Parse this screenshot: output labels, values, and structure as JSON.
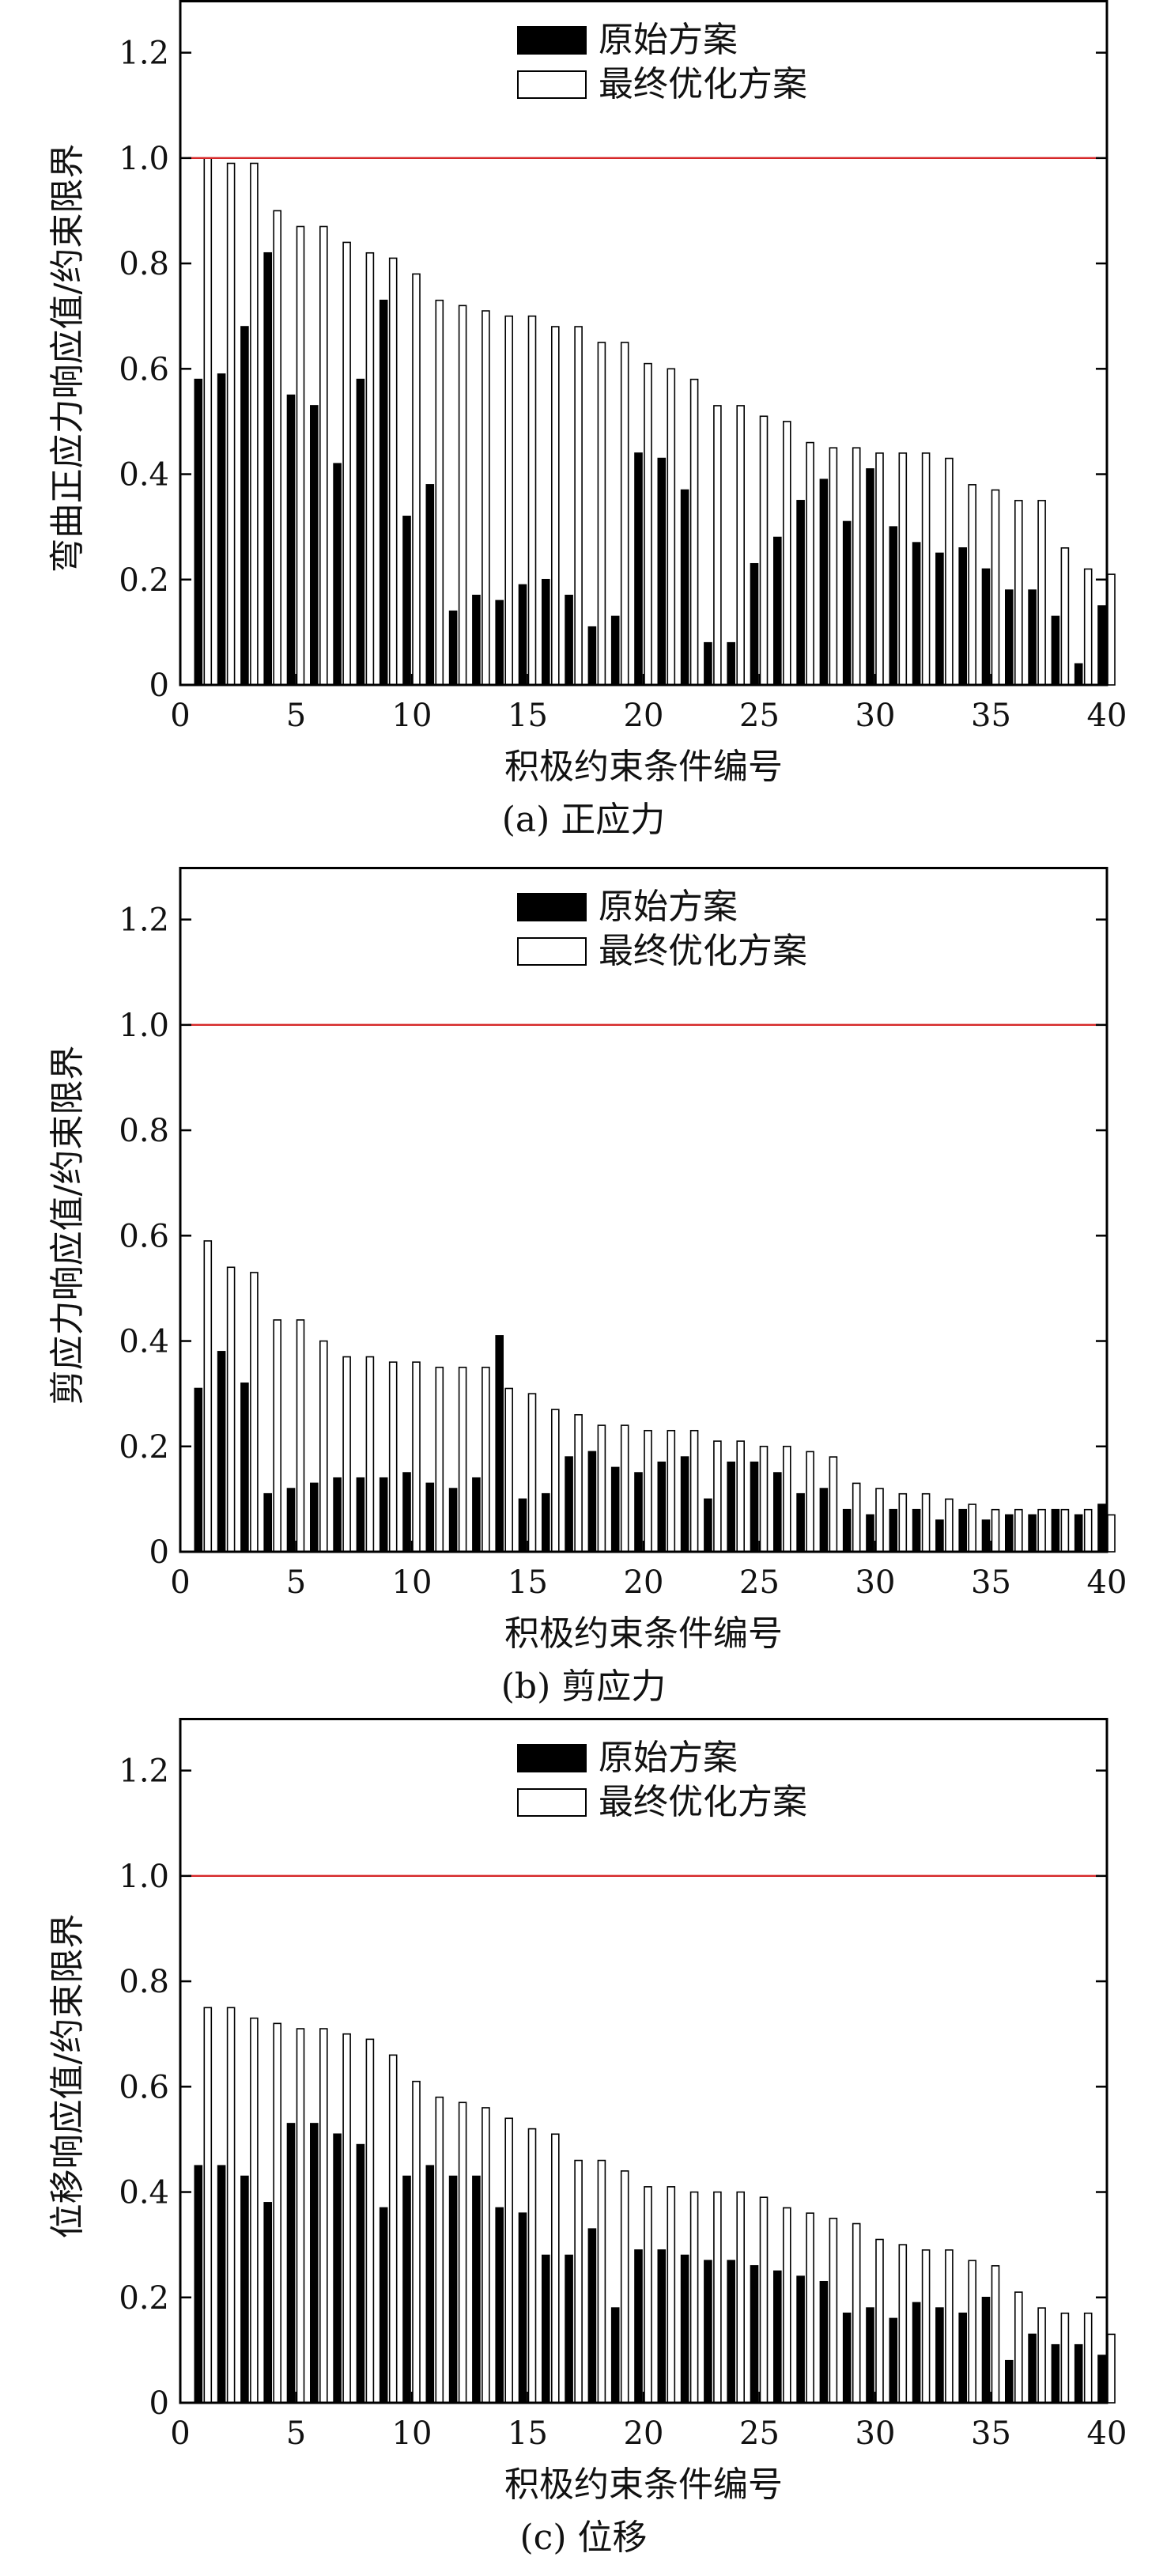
{
  "chart_data": [
    {
      "type": "bar",
      "caption": "(a) 正应力",
      "xlabel": "积极约束条件编号",
      "ylabel": "弯曲正应力响应值/约束限界",
      "xlim": [
        0,
        40
      ],
      "ylim": [
        0,
        1.3
      ],
      "xticks": [
        0,
        5,
        10,
        15,
        20,
        25,
        30,
        35,
        40
      ],
      "yticks": [
        0,
        0.2,
        0.4,
        0.6,
        0.8,
        1.0,
        1.2
      ],
      "ytick_labels": [
        "0",
        "0.2",
        "0.4",
        "0.6",
        "0.8",
        "1.0",
        "1.2"
      ],
      "reference_line": {
        "y": 1.0,
        "color": "#d62728"
      },
      "legend": {
        "position": "top-center",
        "entries": [
          "原始方案",
          "最终优化方案"
        ]
      },
      "series": [
        {
          "name": "原始方案",
          "fill": "#000000",
          "values": [
            0.58,
            0.59,
            0.68,
            0.82,
            0.55,
            0.53,
            0.42,
            0.58,
            0.73,
            0.32,
            0.38,
            0.14,
            0.17,
            0.16,
            0.19,
            0.2,
            0.17,
            0.11,
            0.13,
            0.44,
            0.43,
            0.37,
            0.08,
            0.08,
            0.23,
            0.28,
            0.35,
            0.39,
            0.31,
            0.41,
            0.3,
            0.27,
            0.25,
            0.26,
            0.22,
            0.18,
            0.18,
            0.13,
            0.04,
            0.15
          ]
        },
        {
          "name": "最终优化方案",
          "fill": "#ffffff",
          "values": [
            1.0,
            0.99,
            0.99,
            0.9,
            0.87,
            0.87,
            0.84,
            0.82,
            0.81,
            0.78,
            0.73,
            0.72,
            0.71,
            0.7,
            0.7,
            0.68,
            0.68,
            0.65,
            0.65,
            0.61,
            0.6,
            0.58,
            0.53,
            0.53,
            0.51,
            0.5,
            0.46,
            0.45,
            0.45,
            0.44,
            0.44,
            0.44,
            0.43,
            0.38,
            0.37,
            0.35,
            0.35,
            0.26,
            0.22,
            0.21
          ]
        }
      ]
    },
    {
      "type": "bar",
      "caption": "(b) 剪应力",
      "xlabel": "积极约束条件编号",
      "ylabel": "剪应力响应值/约束限界",
      "xlim": [
        0,
        40
      ],
      "ylim": [
        0,
        1.3
      ],
      "xticks": [
        0,
        5,
        10,
        15,
        20,
        25,
        30,
        35,
        40
      ],
      "yticks": [
        0,
        0.2,
        0.4,
        0.6,
        0.8,
        1.0,
        1.2
      ],
      "ytick_labels": [
        "0",
        "0.2",
        "0.4",
        "0.6",
        "0.8",
        "1.0",
        "1.2"
      ],
      "reference_line": {
        "y": 1.0,
        "color": "#d62728"
      },
      "legend": {
        "position": "top-center",
        "entries": [
          "原始方案",
          "最终优化方案"
        ]
      },
      "series": [
        {
          "name": "原始方案",
          "fill": "#000000",
          "values": [
            0.31,
            0.38,
            0.32,
            0.11,
            0.12,
            0.13,
            0.14,
            0.14,
            0.14,
            0.15,
            0.13,
            0.12,
            0.14,
            0.41,
            0.1,
            0.11,
            0.18,
            0.19,
            0.16,
            0.15,
            0.17,
            0.18,
            0.1,
            0.17,
            0.17,
            0.15,
            0.11,
            0.12,
            0.08,
            0.07,
            0.08,
            0.08,
            0.06,
            0.08,
            0.06,
            0.07,
            0.07,
            0.08,
            0.07,
            0.09
          ]
        },
        {
          "name": "最终优化方案",
          "fill": "#ffffff",
          "values": [
            0.59,
            0.54,
            0.53,
            0.44,
            0.44,
            0.4,
            0.37,
            0.37,
            0.36,
            0.36,
            0.35,
            0.35,
            0.35,
            0.31,
            0.3,
            0.27,
            0.26,
            0.24,
            0.24,
            0.23,
            0.23,
            0.23,
            0.21,
            0.21,
            0.2,
            0.2,
            0.19,
            0.18,
            0.13,
            0.12,
            0.11,
            0.11,
            0.1,
            0.09,
            0.08,
            0.08,
            0.08,
            0.08,
            0.08,
            0.07
          ]
        }
      ]
    },
    {
      "type": "bar",
      "caption": "(c) 位移",
      "xlabel": "积极约束条件编号",
      "ylabel": "位移响应值/约束限界",
      "xlim": [
        0,
        40
      ],
      "ylim": [
        0,
        1.3
      ],
      "xticks": [
        0,
        5,
        10,
        15,
        20,
        25,
        30,
        35,
        40
      ],
      "yticks": [
        0,
        0.2,
        0.4,
        0.6,
        0.8,
        1.0,
        1.2
      ],
      "ytick_labels": [
        "0",
        "0.2",
        "0.4",
        "0.6",
        "0.8",
        "1.0",
        "1.2"
      ],
      "reference_line": {
        "y": 1.0,
        "color": "#d62728"
      },
      "legend": {
        "position": "top-center",
        "entries": [
          "原始方案",
          "最终优化方案"
        ]
      },
      "series": [
        {
          "name": "原始方案",
          "fill": "#000000",
          "values": [
            0.45,
            0.45,
            0.43,
            0.38,
            0.53,
            0.53,
            0.51,
            0.49,
            0.37,
            0.43,
            0.45,
            0.43,
            0.43,
            0.37,
            0.36,
            0.28,
            0.28,
            0.33,
            0.18,
            0.29,
            0.29,
            0.28,
            0.27,
            0.27,
            0.26,
            0.25,
            0.24,
            0.23,
            0.17,
            0.18,
            0.16,
            0.19,
            0.18,
            0.17,
            0.2,
            0.08,
            0.13,
            0.11,
            0.11,
            0.09
          ]
        },
        {
          "name": "最终优化方案",
          "fill": "#ffffff",
          "values": [
            0.75,
            0.75,
            0.73,
            0.72,
            0.71,
            0.71,
            0.7,
            0.69,
            0.66,
            0.61,
            0.58,
            0.57,
            0.56,
            0.54,
            0.52,
            0.51,
            0.46,
            0.46,
            0.44,
            0.41,
            0.41,
            0.4,
            0.4,
            0.4,
            0.39,
            0.37,
            0.36,
            0.35,
            0.34,
            0.31,
            0.3,
            0.29,
            0.29,
            0.27,
            0.26,
            0.21,
            0.18,
            0.17,
            0.17,
            0.13
          ]
        }
      ]
    }
  ]
}
